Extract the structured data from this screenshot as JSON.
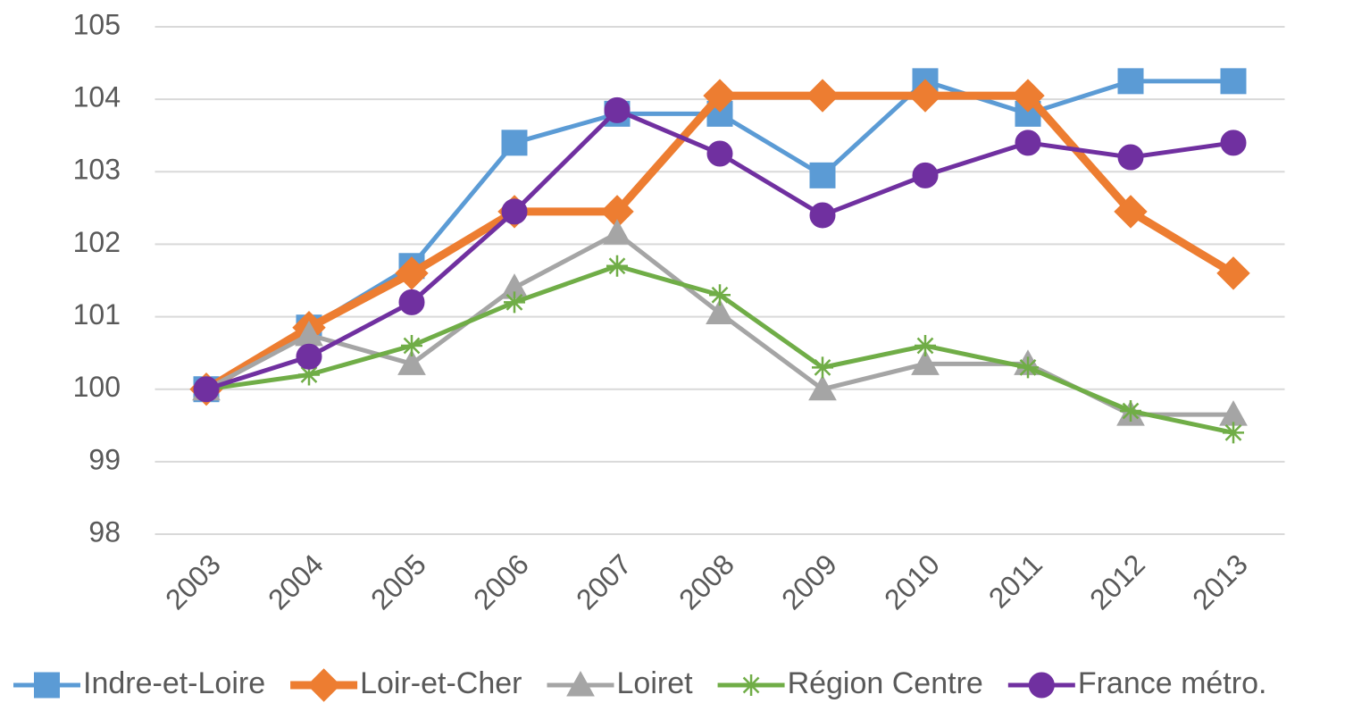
{
  "chart_data": {
    "type": "line",
    "categories": [
      "2003",
      "2004",
      "2005",
      "2006",
      "2007",
      "2008",
      "2009",
      "2010",
      "2011",
      "2012",
      "2013"
    ],
    "ylim": [
      98,
      105
    ],
    "yticks": [
      98,
      99,
      100,
      101,
      102,
      103,
      104,
      105
    ],
    "grid": true,
    "legend": "bottom",
    "series": [
      {
        "name": "Indre-et-Loire",
        "color": "#5b9bd5",
        "marker": "square",
        "values": [
          100,
          100.85,
          101.7,
          103.4,
          103.8,
          103.8,
          102.95,
          104.25,
          103.8,
          104.25,
          104.25
        ]
      },
      {
        "name": "Loir-et-Cher",
        "color": "#ed7d31",
        "marker": "diamond",
        "values": [
          100,
          100.85,
          101.6,
          102.45,
          102.45,
          104.05,
          104.05,
          104.05,
          104.05,
          102.45,
          101.6
        ]
      },
      {
        "name": "Loiret",
        "color": "#a5a5a5",
        "marker": "triangle",
        "values": [
          100,
          100.75,
          100.35,
          101.4,
          102.15,
          101.05,
          100,
          100.35,
          100.35,
          99.65,
          99.65
        ]
      },
      {
        "name": "Région Centre",
        "color": "#70ad47",
        "marker": "star",
        "values": [
          100,
          100.2,
          100.6,
          101.2,
          101.7,
          101.3,
          100.3,
          100.6,
          100.3,
          99.7,
          99.4
        ]
      },
      {
        "name": "France métro.",
        "color": "#7030a0",
        "marker": "circle",
        "values": [
          100,
          100.45,
          101.2,
          102.45,
          103.85,
          103.25,
          102.4,
          102.95,
          103.4,
          103.2,
          103.4
        ]
      }
    ]
  }
}
